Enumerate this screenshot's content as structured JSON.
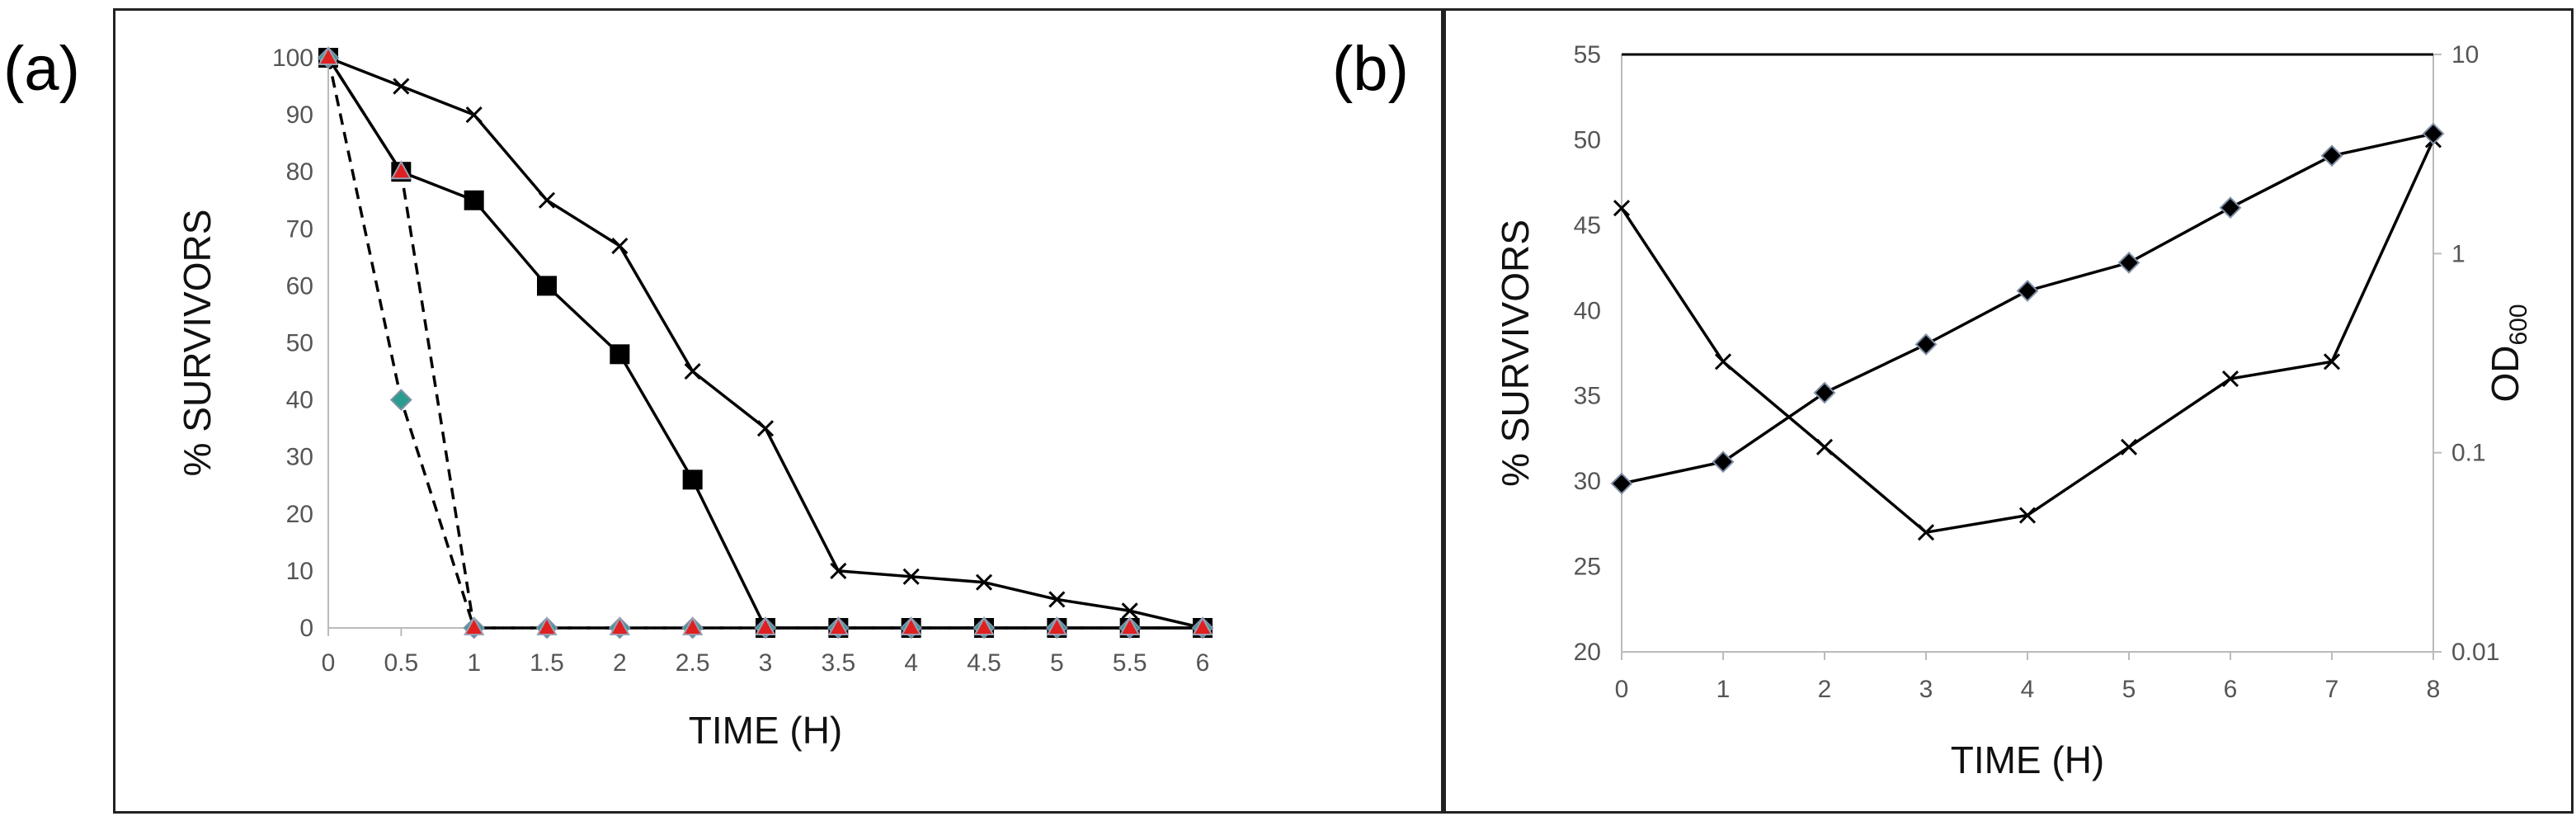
{
  "panels": [
    {
      "label": "(a)",
      "chart_data": {
        "type": "line",
        "xlabel": "TIME (H)",
        "ylabel": "% SURVIVORS",
        "xlim": [
          0,
          6
        ],
        "ylim": [
          0,
          100
        ],
        "x_ticks": [
          "0",
          "0.5",
          "1",
          "1.5",
          "2",
          "2.5",
          "3",
          "3.5",
          "4",
          "4.5",
          "5",
          "5.5",
          "6"
        ],
        "y_ticks": [
          "0",
          "10",
          "20",
          "30",
          "40",
          "50",
          "60",
          "70",
          "80",
          "90",
          "100"
        ],
        "grid": false,
        "series": [
          {
            "name": "crosses (solid)",
            "marker": "x",
            "dashed": false,
            "color": "#000000",
            "x": [
              0,
              0.5,
              1,
              1.5,
              2,
              2.5,
              3,
              3.5,
              4,
              4.5,
              5,
              5.5,
              6
            ],
            "y": [
              100,
              95,
              90,
              75,
              67,
              45,
              35,
              10,
              9,
              8,
              5,
              3,
              0
            ]
          },
          {
            "name": "squares (solid)",
            "marker": "square",
            "dashed": false,
            "color": "#000000",
            "x": [
              0,
              0.5,
              1,
              1.5,
              2,
              2.5,
              3,
              3.5,
              4,
              4.5,
              5,
              5.5,
              6
            ],
            "y": [
              100,
              80,
              75,
              60,
              48,
              26,
              0,
              0,
              0,
              0,
              0,
              0,
              0
            ]
          },
          {
            "name": "diamonds (dashed)",
            "marker": "diamond",
            "dashed": true,
            "color": "#2a9d8f",
            "x": [
              0,
              0.5,
              1,
              1.5,
              2,
              2.5,
              3,
              3.5,
              4,
              4.5,
              5,
              5.5,
              6
            ],
            "y": [
              100,
              40,
              0,
              0,
              0,
              0,
              0,
              0,
              0,
              0,
              0,
              0,
              0
            ]
          },
          {
            "name": "triangles (dashed)",
            "marker": "triangle",
            "dashed": true,
            "color": "#e02020",
            "x": [
              0,
              0.5,
              1,
              1.5,
              2,
              2.5,
              3,
              3.5,
              4,
              4.5,
              5,
              5.5,
              6
            ],
            "y": [
              100,
              80,
              0,
              0,
              0,
              0,
              0,
              0,
              0,
              0,
              0,
              0,
              0
            ]
          }
        ]
      }
    },
    {
      "label": "(b)",
      "chart_data": {
        "type": "line",
        "xlabel": "TIME (H)",
        "ylabel": "% SURVIVORS",
        "y2label_main": "OD",
        "y2label_sub": "600",
        "xlim": [
          0,
          8
        ],
        "ylim": [
          20,
          55
        ],
        "y2lim_log": [
          0.01,
          10
        ],
        "x_ticks": [
          "0",
          "1",
          "2",
          "3",
          "4",
          "5",
          "6",
          "7",
          "8"
        ],
        "y_ticks": [
          "20",
          "25",
          "30",
          "35",
          "40",
          "45",
          "50",
          "55"
        ],
        "y2_ticks": [
          "0.01",
          "0.1",
          "1",
          "10"
        ],
        "grid": false,
        "series": [
          {
            "name": "% survivors (crosses)",
            "axis": "left",
            "marker": "x",
            "color": "#000000",
            "x": [
              0,
              1,
              2,
              3,
              4,
              5,
              6,
              7,
              8
            ],
            "y": [
              46,
              37,
              32,
              27,
              28,
              32,
              36,
              37,
              50
            ]
          },
          {
            "name": "OD600 (diamonds)",
            "axis": "right",
            "marker": "diamond",
            "color": "#000000",
            "x": [
              0,
              1,
              2,
              3,
              4,
              5,
              6,
              7,
              8
            ],
            "y": [
              0.07,
              0.09,
              0.2,
              0.35,
              0.65,
              0.9,
              1.7,
              3.1,
              4.0
            ]
          }
        ]
      }
    }
  ]
}
